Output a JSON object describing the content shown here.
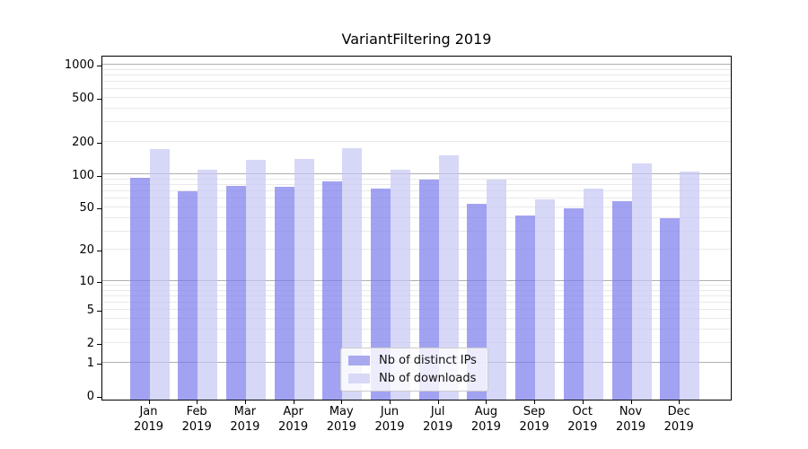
{
  "chart_data": {
    "type": "bar",
    "title": "VariantFiltering 2019",
    "scale": "log1p",
    "grid": true,
    "legend_position": "lower center",
    "categories": [
      "Jan",
      "Feb",
      "Mar",
      "Apr",
      "May",
      "Jun",
      "Jul",
      "Aug",
      "Sep",
      "Oct",
      "Nov",
      "Dec"
    ],
    "category_year": "2019",
    "series": [
      {
        "name": "Nb of distinct IPs",
        "color": "rgba(122,122,237,0.70)",
        "legend_color": "#a9a9ef",
        "values": [
          94,
          70,
          79,
          77,
          87,
          74,
          91,
          54,
          42,
          49,
          57,
          40
        ]
      },
      {
        "name": "Nb of downloads",
        "color": "rgba(198,198,244,0.70)",
        "legend_color": "#d8d8f7",
        "values": [
          170,
          112,
          136,
          139,
          175,
          111,
          151,
          90,
          59,
          75,
          127,
          106
        ]
      }
    ],
    "y_ticks": [
      0,
      1,
      2,
      5,
      10,
      20,
      50,
      100,
      200,
      500,
      1000
    ],
    "y_major_grid": [
      1,
      10,
      100,
      1000
    ],
    "y_minor_grid": [
      2,
      3,
      4,
      5,
      6,
      7,
      8,
      9,
      20,
      30,
      40,
      50,
      60,
      70,
      80,
      90,
      200,
      300,
      400,
      500,
      600,
      700,
      800,
      900
    ],
    "ylim": [
      0,
      1220
    ],
    "colors": {
      "major_grid": "#b0b0b0",
      "minor_grid": "#e9e9e9",
      "axis": "#000000",
      "text": "#111111"
    }
  }
}
